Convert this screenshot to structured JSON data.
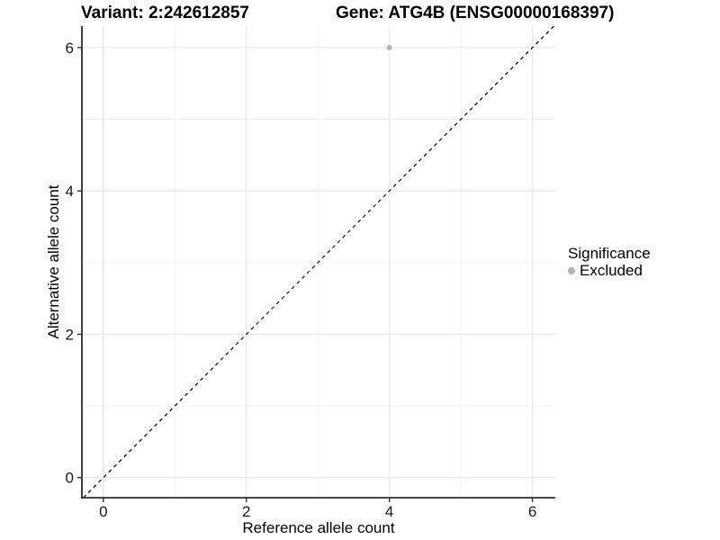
{
  "chart_data": {
    "type": "scatter",
    "title_left": "Variant: 2:242612857",
    "title_right": "Gene: ATG4B (ENSG00000168397)",
    "xlabel": "Reference allele count",
    "ylabel": "Alternative allele count",
    "xlim": [
      -0.3,
      6.32
    ],
    "ylim": [
      -0.28,
      6.3
    ],
    "x_ticks": [
      "0",
      "2",
      "4",
      "6"
    ],
    "y_ticks": [
      "0",
      "2",
      "4",
      "6"
    ],
    "x_tick_values": [
      0,
      2,
      4,
      6
    ],
    "y_tick_values": [
      0,
      2,
      4,
      6
    ],
    "x_minor_ticks": [
      1,
      3,
      5
    ],
    "y_minor_ticks": [
      1,
      3,
      5
    ],
    "grid": true,
    "legend": {
      "title": "Significance",
      "position": "right",
      "items": [
        {
          "label": "Excluded",
          "color": "#b4b4b4"
        }
      ]
    },
    "series": [
      {
        "name": "Excluded",
        "color": "#b4b4b4",
        "points": [
          {
            "x": 4,
            "y": 6
          }
        ]
      }
    ],
    "identity_line": {
      "slope": 1,
      "intercept": 0,
      "style": "dashed",
      "color": "#000000"
    },
    "colors": {
      "background": "#ffffff",
      "axis_line": "#2e2e2e",
      "tick_mark": "#333333",
      "tick_label": "#1a1a1a",
      "grid_major": "#e7e7e7",
      "grid_minor": "#f2f2f2"
    }
  }
}
